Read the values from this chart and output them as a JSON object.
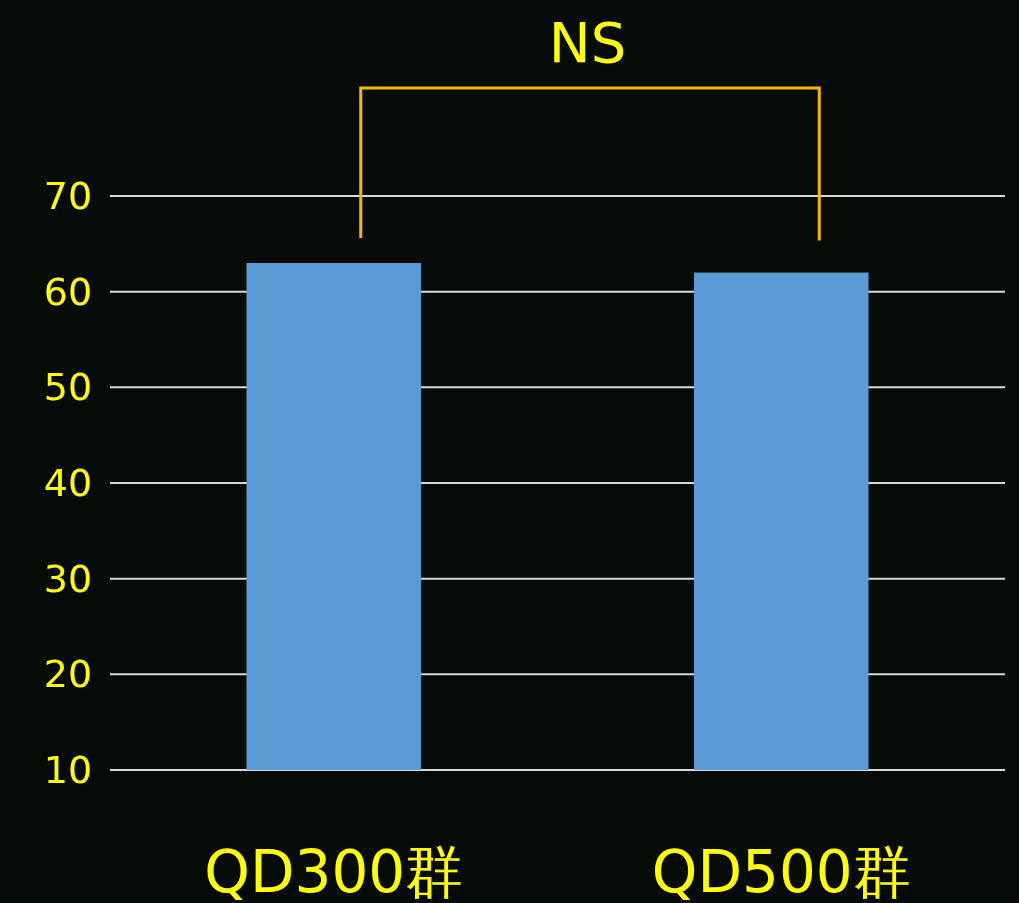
{
  "chart_data": {
    "type": "bar",
    "categories": [
      "QD300群",
      "QD500群"
    ],
    "values": [
      63,
      62
    ],
    "color": "#5b9bd5",
    "ylim": [
      10,
      70
    ],
    "yticks": [
      10,
      20,
      30,
      40,
      50,
      60,
      70
    ],
    "grid": "y",
    "annotations": [
      "NS"
    ]
  }
}
